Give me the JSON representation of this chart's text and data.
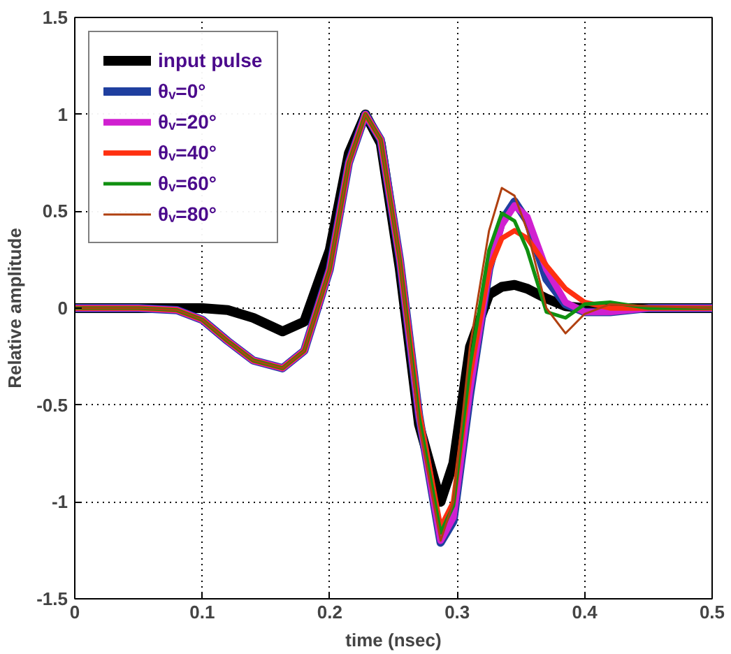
{
  "chart_data": {
    "type": "line",
    "xlabel": "time (nsec)",
    "ylabel": "Relative amplitude",
    "x": [
      0,
      0.05,
      0.08,
      0.1,
      0.12,
      0.14,
      0.163,
      0.18,
      0.2,
      0.215,
      0.228,
      0.24,
      0.255,
      0.27,
      0.287,
      0.297,
      0.31,
      0.325,
      0.335,
      0.345,
      0.355,
      0.37,
      0.385,
      0.4,
      0.42,
      0.45,
      0.5
    ],
    "series": [
      {
        "name": "input pulse",
        "color": "#000000",
        "values": [
          0,
          0,
          0,
          0,
          -0.01,
          -0.05,
          -0.12,
          -0.07,
          0.3,
          0.8,
          1,
          0.85,
          0.2,
          -0.6,
          -1,
          -0.8,
          -0.2,
          0.07,
          0.11,
          0.12,
          0.1,
          0.05,
          0.01,
          0,
          0,
          0,
          0
        ]
      },
      {
        "name": "θᵥ=0°",
        "color": "#1f3f9f",
        "values": [
          0,
          0,
          -0.01,
          -0.06,
          -0.17,
          -0.27,
          -0.31,
          -0.22,
          0.2,
          0.75,
          1,
          0.87,
          0.25,
          -0.55,
          -1.21,
          -1.1,
          -0.45,
          0.2,
          0.45,
          0.55,
          0.45,
          0.15,
          0.02,
          -0.02,
          -0.02,
          0,
          0
        ]
      },
      {
        "name": "θᵥ=20°",
        "color": "#d020d0",
        "values": [
          0,
          0,
          -0.01,
          -0.06,
          -0.17,
          -0.27,
          -0.31,
          -0.22,
          0.2,
          0.75,
          1,
          0.87,
          0.25,
          -0.55,
          -1.2,
          -1.08,
          -0.42,
          0.2,
          0.43,
          0.53,
          0.47,
          0.2,
          0.03,
          -0.02,
          -0.02,
          0,
          0
        ]
      },
      {
        "name": "θᵥ=40°",
        "color": "#ff3010",
        "values": [
          0,
          0,
          -0.01,
          -0.06,
          -0.17,
          -0.27,
          -0.31,
          -0.22,
          0.2,
          0.75,
          1,
          0.87,
          0.25,
          -0.53,
          -1.13,
          -1.0,
          -0.35,
          0.2,
          0.36,
          0.4,
          0.36,
          0.22,
          0.1,
          0.03,
          0,
          0,
          0
        ]
      },
      {
        "name": "θᵥ=60°",
        "color": "#109010",
        "values": [
          0,
          0,
          -0.01,
          -0.06,
          -0.17,
          -0.27,
          -0.31,
          -0.22,
          0.2,
          0.75,
          1,
          0.87,
          0.25,
          -0.56,
          -1.16,
          -1.02,
          -0.3,
          0.3,
          0.49,
          0.45,
          0.3,
          -0.02,
          -0.05,
          0.02,
          0.03,
          0,
          0
        ]
      },
      {
        "name": "θᵥ=80°",
        "color": "#b04010",
        "values": [
          0,
          0,
          -0.01,
          -0.06,
          -0.17,
          -0.27,
          -0.31,
          -0.22,
          0.2,
          0.75,
          1,
          0.87,
          0.25,
          -0.6,
          -1.2,
          -1.0,
          -0.2,
          0.4,
          0.62,
          0.58,
          0.4,
          0.0,
          -0.13,
          -0.03,
          0.02,
          0.01,
          0
        ]
      }
    ],
    "xlim": [
      0,
      0.5
    ],
    "ylim": [
      -1.5,
      1.5
    ],
    "xticks": [
      0,
      0.1,
      0.2,
      0.3,
      0.4,
      0.5
    ],
    "yticks": [
      -1.5,
      -1,
      -0.5,
      0,
      0.5,
      1,
      1.5
    ],
    "grid": true,
    "legend": "top left",
    "marker": "none",
    "line_style": "solid"
  }
}
